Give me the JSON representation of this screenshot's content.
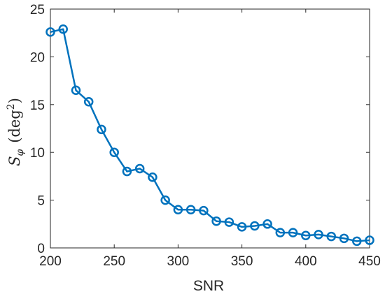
{
  "chart_data": {
    "type": "line",
    "title": "",
    "xlabel": "SNR",
    "ylabel": {
      "symbol": "S",
      "subscript": "φ",
      "unit_open": "(deg",
      "unit_power": "2",
      "unit_close": ")"
    },
    "xlim": [
      200,
      450
    ],
    "ylim": [
      0,
      25
    ],
    "xticks": [
      200,
      250,
      300,
      350,
      400,
      450
    ],
    "yticks": [
      0,
      5,
      10,
      15,
      20,
      25
    ],
    "grid": false,
    "legend": "none",
    "marker": "circle",
    "color": "#0072BD",
    "series": [
      {
        "x": [
          200,
          210,
          220,
          230,
          240,
          250,
          260,
          270,
          280,
          290,
          300,
          310,
          320,
          330,
          340,
          350,
          360,
          370,
          380,
          390,
          400,
          410,
          420,
          430,
          440,
          450
        ],
        "y": [
          22.6,
          22.9,
          16.5,
          15.3,
          12.4,
          10.0,
          8.0,
          8.3,
          7.4,
          5.0,
          4.0,
          4.0,
          3.9,
          2.8,
          2.7,
          2.2,
          2.3,
          2.5,
          1.6,
          1.6,
          1.3,
          1.4,
          1.2,
          1.0,
          0.7,
          0.8
        ]
      }
    ]
  }
}
